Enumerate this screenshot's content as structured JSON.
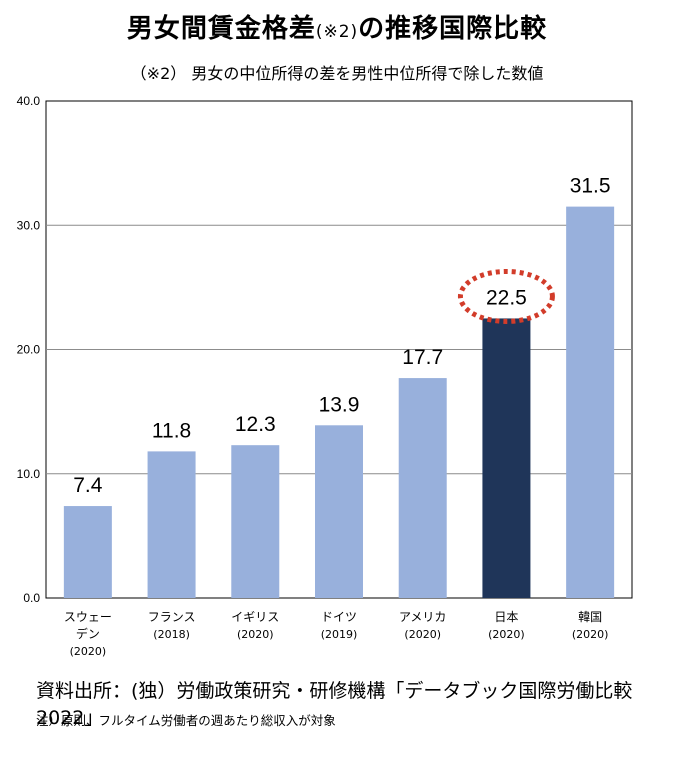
{
  "title": {
    "main": "男女間賃金格差",
    "note": "(※2)",
    "tail": "の推移国際比較"
  },
  "subtitle": "（※2） 男女の中位所得の差を男性中位所得で除した数値",
  "chart_data": {
    "type": "bar",
    "categories": [
      [
        "スウェー",
        "デン",
        "(2020)"
      ],
      [
        "フランス",
        "(2018)"
      ],
      [
        "イギリス",
        "(2020)"
      ],
      [
        "ドイツ",
        "(2019)"
      ],
      [
        "アメリカ",
        "(2020)"
      ],
      [
        "日本",
        "(2020)"
      ],
      [
        "韓国",
        "(2020)"
      ]
    ],
    "values": [
      7.4,
      11.8,
      12.3,
      13.9,
      17.7,
      22.5,
      31.5
    ],
    "value_labels": [
      "7.4",
      "11.8",
      "12.3",
      "13.9",
      "17.7",
      "22.5",
      "31.5"
    ],
    "ylim": [
      0,
      40
    ],
    "yticks": [
      "0.0",
      "10.0",
      "20.0",
      "30.0",
      "40.0"
    ],
    "grid": true,
    "bar_color": "#98b0dc",
    "highlight_index": 5,
    "highlight_color": "#1f3559",
    "highlight_ring_color": "#d23c2a"
  },
  "source": "資料出所：(独）労働政策研究・研修機構「データブック国際労働比較2022」",
  "footnote": "注）原則、フルタイム労働者の週あたり総収入が対象"
}
